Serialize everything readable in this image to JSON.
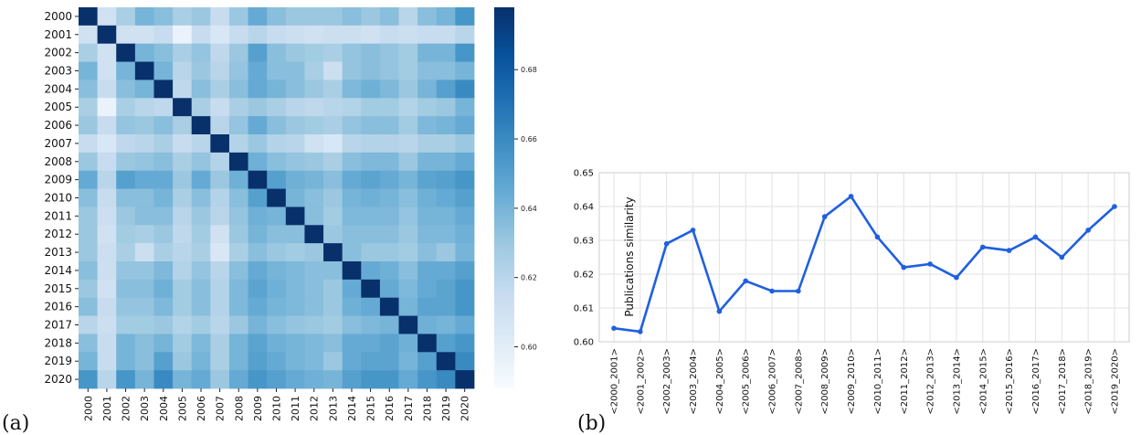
{
  "panels": {
    "a": "(a)",
    "b": "(b)"
  },
  "chart_data": [
    {
      "type": "heatmap",
      "panel": "(a)",
      "title": "",
      "xlabel": "",
      "ylabel": "",
      "x_categories": [
        "2000",
        "2001",
        "2002",
        "2003",
        "2004",
        "2005",
        "2006",
        "2007",
        "2008",
        "2009",
        "2010",
        "2011",
        "2012",
        "2013",
        "2014",
        "2015",
        "2016",
        "2017",
        "2018",
        "2019",
        "2020"
      ],
      "y_categories": [
        "2000",
        "2001",
        "2002",
        "2003",
        "2004",
        "2005",
        "2006",
        "2007",
        "2008",
        "2009",
        "2010",
        "2011",
        "2012",
        "2013",
        "2014",
        "2015",
        "2016",
        "2017",
        "2018",
        "2019",
        "2020"
      ],
      "colormap": "Blues",
      "vmin": 0.588,
      "vmax": 0.698,
      "colorbar_ticks": [
        "0.60",
        "0.62",
        "0.64",
        "0.66",
        "0.68"
      ],
      "colorbar_tick_values": [
        0.6,
        0.62,
        0.64,
        0.66,
        0.68
      ],
      "values": [
        [
          0.698,
          0.61,
          0.625,
          0.64,
          0.635,
          0.625,
          0.63,
          0.615,
          0.63,
          0.645,
          0.635,
          0.63,
          0.63,
          0.63,
          0.635,
          0.63,
          0.635,
          0.62,
          0.635,
          0.64,
          0.655
        ],
        [
          0.61,
          0.698,
          0.61,
          0.61,
          0.615,
          0.595,
          0.615,
          0.605,
          0.615,
          0.62,
          0.615,
          0.612,
          0.61,
          0.612,
          0.612,
          0.61,
          0.615,
          0.612,
          0.615,
          0.615,
          0.62
        ],
        [
          0.625,
          0.61,
          0.698,
          0.64,
          0.635,
          0.625,
          0.632,
          0.618,
          0.63,
          0.65,
          0.635,
          0.63,
          0.628,
          0.625,
          0.632,
          0.635,
          0.632,
          0.628,
          0.64,
          0.64,
          0.655
        ],
        [
          0.64,
          0.61,
          0.64,
          0.698,
          0.64,
          0.62,
          0.63,
          0.62,
          0.632,
          0.645,
          0.635,
          0.635,
          0.625,
          0.612,
          0.632,
          0.635,
          0.632,
          0.628,
          0.635,
          0.635,
          0.64
        ],
        [
          0.635,
          0.615,
          0.635,
          0.64,
          0.698,
          0.618,
          0.635,
          0.625,
          0.635,
          0.645,
          0.64,
          0.635,
          0.63,
          0.625,
          0.638,
          0.642,
          0.638,
          0.63,
          0.64,
          0.65,
          0.66
        ],
        [
          0.625,
          0.595,
          0.625,
          0.62,
          0.618,
          0.698,
          0.625,
          0.615,
          0.625,
          0.63,
          0.625,
          0.62,
          0.618,
          0.62,
          0.622,
          0.628,
          0.628,
          0.622,
          0.628,
          0.63,
          0.64
        ],
        [
          0.63,
          0.615,
          0.632,
          0.63,
          0.635,
          0.625,
          0.698,
          0.62,
          0.632,
          0.645,
          0.635,
          0.63,
          0.628,
          0.625,
          0.632,
          0.635,
          0.635,
          0.628,
          0.638,
          0.64,
          0.645
        ],
        [
          0.615,
          0.605,
          0.618,
          0.62,
          0.625,
          0.615,
          0.62,
          0.698,
          0.622,
          0.63,
          0.622,
          0.62,
          0.61,
          0.605,
          0.62,
          0.622,
          0.622,
          0.62,
          0.625,
          0.625,
          0.63
        ],
        [
          0.63,
          0.615,
          0.63,
          0.632,
          0.635,
          0.625,
          0.632,
          0.622,
          0.698,
          0.642,
          0.635,
          0.632,
          0.63,
          0.625,
          0.635,
          0.638,
          0.638,
          0.63,
          0.64,
          0.64,
          0.645
        ],
        [
          0.645,
          0.62,
          0.65,
          0.645,
          0.645,
          0.63,
          0.645,
          0.63,
          0.642,
          0.698,
          0.65,
          0.642,
          0.64,
          0.635,
          0.645,
          0.648,
          0.645,
          0.64,
          0.648,
          0.65,
          0.655
        ],
        [
          0.635,
          0.615,
          0.635,
          0.635,
          0.64,
          0.625,
          0.635,
          0.622,
          0.635,
          0.65,
          0.698,
          0.64,
          0.635,
          0.63,
          0.64,
          0.642,
          0.64,
          0.635,
          0.642,
          0.645,
          0.65
        ],
        [
          0.63,
          0.612,
          0.63,
          0.635,
          0.635,
          0.62,
          0.63,
          0.62,
          0.632,
          0.642,
          0.64,
          0.698,
          0.635,
          0.628,
          0.638,
          0.638,
          0.638,
          0.632,
          0.64,
          0.64,
          0.645
        ],
        [
          0.63,
          0.61,
          0.628,
          0.625,
          0.63,
          0.618,
          0.628,
          0.61,
          0.63,
          0.64,
          0.635,
          0.635,
          0.698,
          0.63,
          0.635,
          0.635,
          0.635,
          0.63,
          0.638,
          0.638,
          0.642
        ],
        [
          0.63,
          0.612,
          0.625,
          0.612,
          0.625,
          0.62,
          0.625,
          0.605,
          0.625,
          0.635,
          0.63,
          0.628,
          0.63,
          0.698,
          0.635,
          0.63,
          0.63,
          0.628,
          0.635,
          0.63,
          0.64
        ],
        [
          0.635,
          0.612,
          0.632,
          0.632,
          0.638,
          0.622,
          0.632,
          0.62,
          0.635,
          0.645,
          0.64,
          0.638,
          0.635,
          0.635,
          0.698,
          0.645,
          0.642,
          0.635,
          0.645,
          0.645,
          0.65
        ],
        [
          0.63,
          0.61,
          0.635,
          0.635,
          0.642,
          0.628,
          0.635,
          0.622,
          0.638,
          0.648,
          0.642,
          0.638,
          0.635,
          0.63,
          0.645,
          0.698,
          0.645,
          0.638,
          0.645,
          0.648,
          0.655
        ],
        [
          0.635,
          0.615,
          0.632,
          0.632,
          0.638,
          0.628,
          0.635,
          0.622,
          0.638,
          0.645,
          0.64,
          0.638,
          0.635,
          0.63,
          0.642,
          0.645,
          0.698,
          0.64,
          0.648,
          0.648,
          0.655
        ],
        [
          0.62,
          0.612,
          0.628,
          0.628,
          0.63,
          0.622,
          0.628,
          0.62,
          0.63,
          0.64,
          0.635,
          0.632,
          0.63,
          0.628,
          0.635,
          0.638,
          0.64,
          0.698,
          0.642,
          0.64,
          0.645
        ],
        [
          0.635,
          0.615,
          0.64,
          0.635,
          0.64,
          0.628,
          0.638,
          0.625,
          0.64,
          0.648,
          0.642,
          0.64,
          0.638,
          0.635,
          0.645,
          0.645,
          0.648,
          0.642,
          0.698,
          0.65,
          0.655
        ],
        [
          0.64,
          0.615,
          0.64,
          0.635,
          0.65,
          0.63,
          0.64,
          0.625,
          0.64,
          0.65,
          0.645,
          0.64,
          0.638,
          0.63,
          0.645,
          0.648,
          0.648,
          0.64,
          0.65,
          0.698,
          0.66
        ],
        [
          0.655,
          0.62,
          0.655,
          0.64,
          0.66,
          0.64,
          0.645,
          0.63,
          0.645,
          0.655,
          0.65,
          0.645,
          0.642,
          0.64,
          0.65,
          0.655,
          0.655,
          0.645,
          0.655,
          0.66,
          0.698
        ]
      ]
    },
    {
      "type": "line",
      "panel": "(b)",
      "title": "",
      "xlabel": "",
      "ylabel": "Publications similarity",
      "categories": [
        "<2000_2001>",
        "<2001_2002>",
        "<2002_2003>",
        "<2003_2004>",
        "<2004_2005>",
        "<2005_2006>",
        "<2006_2007>",
        "<2007_2008>",
        "<2008_2009>",
        "<2009_2010>",
        "<2010_2011>",
        "<2011_2012>",
        "<2012_2013>",
        "<2013_2014>",
        "<2014_2015>",
        "<2015_2016>",
        "<2016_2017>",
        "<2017_2018>",
        "<2018_2019>",
        "<2019_2020>"
      ],
      "values": [
        0.604,
        0.603,
        0.629,
        0.633,
        0.609,
        0.618,
        0.615,
        0.615,
        0.637,
        0.643,
        0.631,
        0.622,
        0.623,
        0.619,
        0.628,
        0.627,
        0.631,
        0.625,
        0.633,
        0.64
      ],
      "ylim": [
        0.6,
        0.65
      ],
      "yticks": [
        "0.60",
        "0.61",
        "0.62",
        "0.63",
        "0.64",
        "0.65"
      ],
      "ytick_values": [
        0.6,
        0.61,
        0.62,
        0.63,
        0.64,
        0.65
      ],
      "grid": true,
      "line_color": "#1f5fe0"
    }
  ]
}
